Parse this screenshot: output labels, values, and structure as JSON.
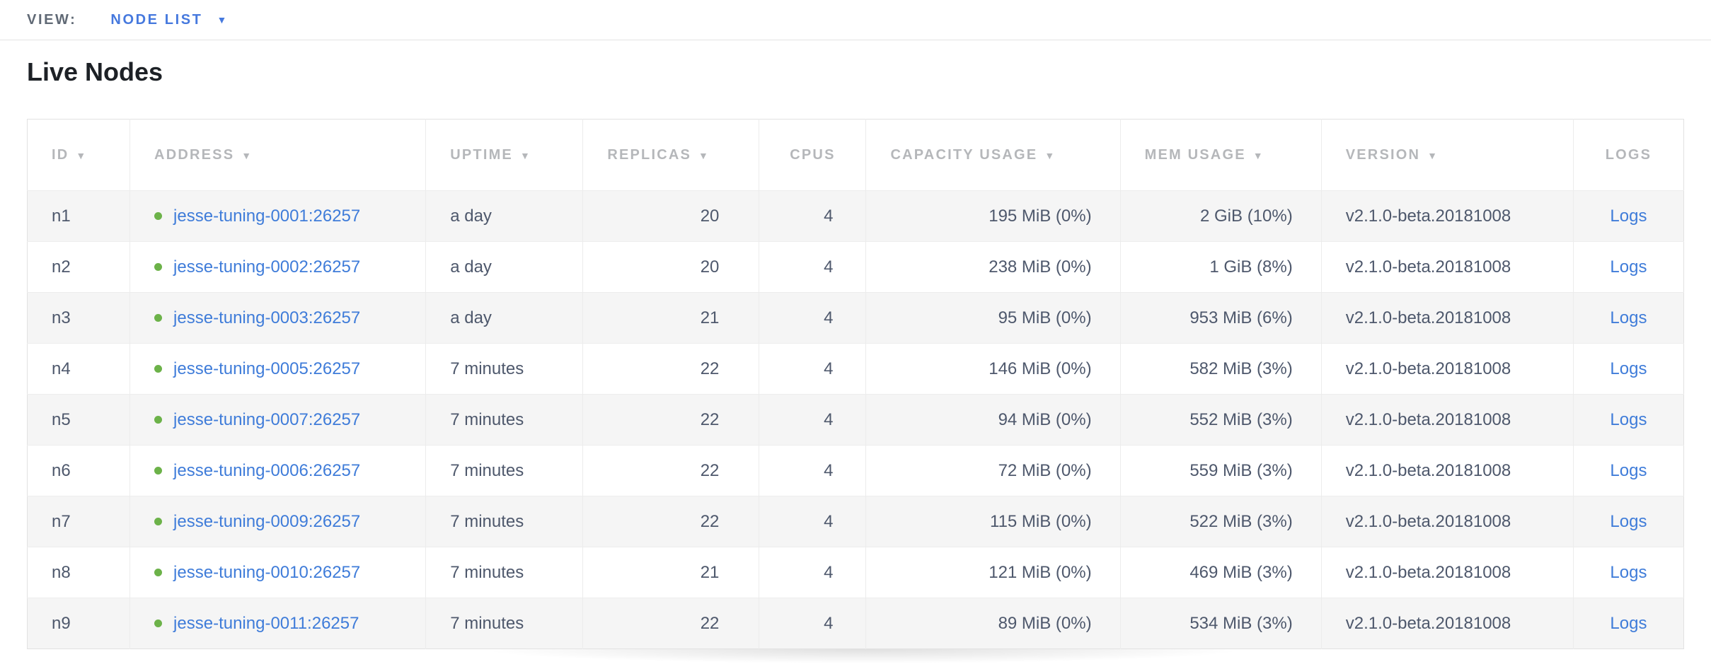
{
  "view_bar": {
    "label": "VIEW:",
    "selected": "NODE LIST"
  },
  "page": {
    "title": "Live Nodes"
  },
  "icons": {
    "sort_arrow": "▼",
    "dropdown_caret": "▼"
  },
  "colors": {
    "accent_blue": "#4679de",
    "link_blue": "#3f7cd9",
    "node_live_green": "#6cb249",
    "header_text_gray": "#b5b7ba",
    "cell_text_slate": "#4e586c"
  },
  "table": {
    "columns": [
      {
        "key": "id",
        "label": "ID",
        "sortable": true
      },
      {
        "key": "address",
        "label": "ADDRESS",
        "sortable": true
      },
      {
        "key": "uptime",
        "label": "UPTIME",
        "sortable": true
      },
      {
        "key": "replicas",
        "label": "REPLICAS",
        "sortable": true
      },
      {
        "key": "cpus",
        "label": "CPUS",
        "sortable": false
      },
      {
        "key": "capacity",
        "label": "CAPACITY USAGE",
        "sortable": true
      },
      {
        "key": "mem",
        "label": "MEM USAGE",
        "sortable": true
      },
      {
        "key": "version",
        "label": "VERSION",
        "sortable": true
      },
      {
        "key": "logs",
        "label": "LOGS",
        "sortable": false
      }
    ],
    "rows": [
      {
        "id": "n1",
        "address": "jesse-tuning-0001:26257",
        "uptime": "a day",
        "replicas": "20",
        "cpus": "4",
        "capacity": "195 MiB (0%)",
        "mem": "2 GiB (10%)",
        "version": "v2.1.0-beta.20181008",
        "logs": "Logs"
      },
      {
        "id": "n2",
        "address": "jesse-tuning-0002:26257",
        "uptime": "a day",
        "replicas": "20",
        "cpus": "4",
        "capacity": "238 MiB (0%)",
        "mem": "1 GiB (8%)",
        "version": "v2.1.0-beta.20181008",
        "logs": "Logs"
      },
      {
        "id": "n3",
        "address": "jesse-tuning-0003:26257",
        "uptime": "a day",
        "replicas": "21",
        "cpus": "4",
        "capacity": "95 MiB (0%)",
        "mem": "953 MiB (6%)",
        "version": "v2.1.0-beta.20181008",
        "logs": "Logs"
      },
      {
        "id": "n4",
        "address": "jesse-tuning-0005:26257",
        "uptime": "7 minutes",
        "replicas": "22",
        "cpus": "4",
        "capacity": "146 MiB (0%)",
        "mem": "582 MiB (3%)",
        "version": "v2.1.0-beta.20181008",
        "logs": "Logs"
      },
      {
        "id": "n5",
        "address": "jesse-tuning-0007:26257",
        "uptime": "7 minutes",
        "replicas": "22",
        "cpus": "4",
        "capacity": "94 MiB (0%)",
        "mem": "552 MiB (3%)",
        "version": "v2.1.0-beta.20181008",
        "logs": "Logs"
      },
      {
        "id": "n6",
        "address": "jesse-tuning-0006:26257",
        "uptime": "7 minutes",
        "replicas": "22",
        "cpus": "4",
        "capacity": "72 MiB (0%)",
        "mem": "559 MiB (3%)",
        "version": "v2.1.0-beta.20181008",
        "logs": "Logs"
      },
      {
        "id": "n7",
        "address": "jesse-tuning-0009:26257",
        "uptime": "7 minutes",
        "replicas": "22",
        "cpus": "4",
        "capacity": "115 MiB (0%)",
        "mem": "522 MiB (3%)",
        "version": "v2.1.0-beta.20181008",
        "logs": "Logs"
      },
      {
        "id": "n8",
        "address": "jesse-tuning-0010:26257",
        "uptime": "7 minutes",
        "replicas": "21",
        "cpus": "4",
        "capacity": "121 MiB (0%)",
        "mem": "469 MiB (3%)",
        "version": "v2.1.0-beta.20181008",
        "logs": "Logs"
      },
      {
        "id": "n9",
        "address": "jesse-tuning-0011:26257",
        "uptime": "7 minutes",
        "replicas": "22",
        "cpus": "4",
        "capacity": "89 MiB (0%)",
        "mem": "534 MiB (3%)",
        "version": "v2.1.0-beta.20181008",
        "logs": "Logs"
      }
    ]
  }
}
